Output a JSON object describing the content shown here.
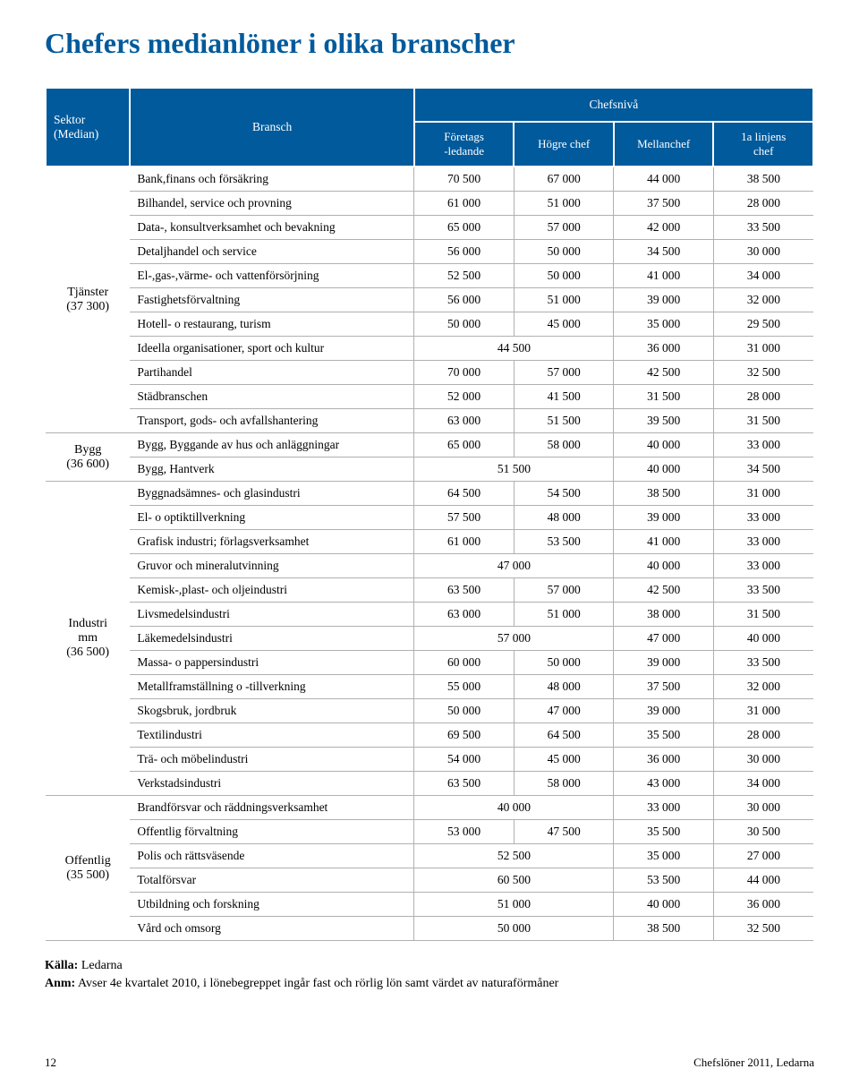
{
  "title": "Chefers medianlöner i olika branscher",
  "colors": {
    "title": "#005a9c",
    "header_bg": "#005a9c",
    "header_fg": "#ffffff",
    "border": "#b0b0b0"
  },
  "header": {
    "sector": "Sektor\n(Median)",
    "branch": "Bransch",
    "level": "Chefsnivå",
    "c1": "Företags\n-ledande",
    "c2": "Högre chef",
    "c3": "Mellanchef",
    "c4": "1a linjens\nchef"
  },
  "sectors": [
    {
      "name": "Tjänster",
      "median": "(37 300)",
      "rows": [
        {
          "branch": "Bank,finans och försäkring",
          "v": [
            "70 500",
            "67 000",
            "44 000",
            "38 500"
          ]
        },
        {
          "branch": "Bilhandel, service och provning",
          "v": [
            "61 000",
            "51 000",
            "37 500",
            "28 000"
          ]
        },
        {
          "branch": "Data-, konsultverksamhet och bevakning",
          "v": [
            "65 000",
            "57 000",
            "42 000",
            "33 500"
          ]
        },
        {
          "branch": "Detaljhandel och service",
          "v": [
            "56 000",
            "50 000",
            "34 500",
            "30 000"
          ]
        },
        {
          "branch": "El-,gas-,värme- och vattenförsörjning",
          "v": [
            "52 500",
            "50 000",
            "41 000",
            "34 000"
          ]
        },
        {
          "branch": "Fastighetsförvaltning",
          "v": [
            "56 000",
            "51 000",
            "39 000",
            "32 000"
          ]
        },
        {
          "branch": "Hotell- o restaurang, turism",
          "v": [
            "50 000",
            "45 000",
            "35 000",
            "29 500"
          ]
        },
        {
          "branch": "Ideella organisationer, sport och kultur",
          "v": [
            "44 500",
            null,
            "36 000",
            "31 000"
          ],
          "span": [
            2,
            0,
            1,
            1
          ]
        },
        {
          "branch": "Partihandel",
          "v": [
            "70 000",
            "57 000",
            "42 500",
            "32 500"
          ]
        },
        {
          "branch": "Städbranschen",
          "v": [
            "52 000",
            "41 500",
            "31 500",
            "28 000"
          ]
        },
        {
          "branch": "Transport, gods- och avfallshantering",
          "v": [
            "63 000",
            "51 500",
            "39 500",
            "31 500"
          ]
        }
      ]
    },
    {
      "name": "Bygg",
      "median": "(36 600)",
      "rows": [
        {
          "branch": "Bygg, Byggande av hus och anläggningar",
          "v": [
            "65 000",
            "58 000",
            "40 000",
            "33 000"
          ]
        },
        {
          "branch": "Bygg, Hantverk",
          "v": [
            "51 500",
            null,
            "40 000",
            "34 500"
          ],
          "span": [
            2,
            0,
            1,
            1
          ]
        }
      ]
    },
    {
      "name": "Industri\nmm",
      "median": "(36 500)",
      "rows": [
        {
          "branch": "Byggnadsämnes- och glasindustri",
          "v": [
            "64 500",
            "54 500",
            "38 500",
            "31 000"
          ]
        },
        {
          "branch": "El- o optiktillverkning",
          "v": [
            "57 500",
            "48 000",
            "39 000",
            "33 000"
          ]
        },
        {
          "branch": "Grafisk industri; förlagsverksamhet",
          "v": [
            "61 000",
            "53 500",
            "41 000",
            "33 000"
          ]
        },
        {
          "branch": "Gruvor och mineralutvinning",
          "v": [
            "47 000",
            null,
            "40 000",
            "33 000"
          ],
          "span": [
            2,
            0,
            1,
            1
          ]
        },
        {
          "branch": "Kemisk-,plast- och oljeindustri",
          "v": [
            "63 500",
            "57 000",
            "42 500",
            "33 500"
          ]
        },
        {
          "branch": "Livsmedelsindustri",
          "v": [
            "63 000",
            "51 000",
            "38 000",
            "31 500"
          ]
        },
        {
          "branch": "Läkemedelsindustri",
          "v": [
            "57 000",
            null,
            "47 000",
            "40 000"
          ],
          "span": [
            2,
            0,
            1,
            1
          ]
        },
        {
          "branch": "Massa- o pappersindustri",
          "v": [
            "60 000",
            "50 000",
            "39 000",
            "33 500"
          ]
        },
        {
          "branch": "Metallframställning o -tillverkning",
          "v": [
            "55 000",
            "48 000",
            "37 500",
            "32 000"
          ]
        },
        {
          "branch": "Skogsbruk, jordbruk",
          "v": [
            "50 000",
            "47 000",
            "39 000",
            "31 000"
          ]
        },
        {
          "branch": "Textilindustri",
          "v": [
            "69 500",
            "64 500",
            "35 500",
            "28 000"
          ]
        },
        {
          "branch": "Trä- och möbelindustri",
          "v": [
            "54 000",
            "45 000",
            "36 000",
            "30 000"
          ]
        },
        {
          "branch": "Verkstadsindustri",
          "v": [
            "63 500",
            "58 000",
            "43 000",
            "34 000"
          ]
        }
      ]
    },
    {
      "name": "Offentlig",
      "median": "(35 500)",
      "rows": [
        {
          "branch": "Brandförsvar och räddningsverksamhet",
          "v": [
            "40 000",
            null,
            "33 000",
            "30 000"
          ],
          "span": [
            2,
            0,
            1,
            1
          ]
        },
        {
          "branch": "Offentlig förvaltning",
          "v": [
            "53 000",
            "47 500",
            "35 500",
            "30 500"
          ]
        },
        {
          "branch": "Polis och rättsväsende",
          "v": [
            "52 500",
            null,
            "35 000",
            "27 000"
          ],
          "span": [
            2,
            0,
            1,
            1
          ]
        },
        {
          "branch": "Totalförsvar",
          "v": [
            "60 500",
            null,
            "53 500",
            "44 000"
          ],
          "span": [
            2,
            0,
            1,
            1
          ]
        },
        {
          "branch": "Utbildning och forskning",
          "v": [
            "51 000",
            null,
            "40 000",
            "36 000"
          ],
          "span": [
            2,
            0,
            1,
            1
          ]
        },
        {
          "branch": "Vård och omsorg",
          "v": [
            "50 000",
            null,
            "38 500",
            "32 500"
          ],
          "span": [
            2,
            0,
            1,
            1
          ]
        }
      ]
    }
  ],
  "footnote": {
    "source_label": "Källa:",
    "source_value": "Ledarna",
    "note_label": "Anm:",
    "note_value": "Avser 4e kvartalet 2010, i lönebegreppet ingår fast och rörlig lön samt värdet av naturaförmåner"
  },
  "footer": {
    "page": "12",
    "doc": "Chefslöner 2011, Ledarna"
  }
}
